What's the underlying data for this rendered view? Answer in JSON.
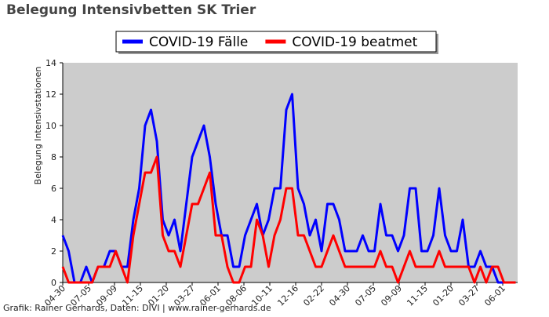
{
  "chart_data": {
    "type": "line",
    "title": "Belegung Intensivbetten SK Trier",
    "ylabel": "Belegung Intensivstationen",
    "footer": "Grafik: Rainer Gerhards, Daten: DIVI | www.rainer-gerhards.de",
    "legend": "upper center",
    "background": "#cccccc",
    "x": [
      0,
      15,
      30,
      45,
      60,
      75,
      90,
      105,
      120,
      135,
      150,
      165,
      180,
      195,
      210,
      225,
      240,
      255,
      270,
      285,
      300,
      315,
      330,
      345,
      360,
      375,
      390,
      405,
      420,
      435,
      450,
      465,
      480,
      495,
      510,
      525,
      540,
      555,
      570,
      585,
      600,
      615,
      630,
      645,
      660,
      675,
      690,
      705,
      720,
      735,
      750,
      765,
      780,
      795,
      810,
      825,
      840,
      855,
      870,
      885,
      900,
      915,
      930,
      945,
      960,
      975,
      990,
      1005,
      1020,
      1035,
      1050,
      1065,
      1080,
      1095,
      1110,
      1125,
      1140,
      1155
    ],
    "xlim": [
      0,
      1160
    ],
    "xticks": [
      {
        "value": 0,
        "label": "04-30"
      },
      {
        "value": 66,
        "label": "07-05"
      },
      {
        "value": 132,
        "label": "09-09"
      },
      {
        "value": 198,
        "label": "11-15"
      },
      {
        "value": 264,
        "label": "01-20"
      },
      {
        "value": 330,
        "label": "03-27"
      },
      {
        "value": 396,
        "label": "06-01"
      },
      {
        "value": 462,
        "label": "08-06"
      },
      {
        "value": 528,
        "label": "10-11"
      },
      {
        "value": 594,
        "label": "12-16"
      },
      {
        "value": 660,
        "label": "02-22"
      },
      {
        "value": 726,
        "label": "04-30"
      },
      {
        "value": 792,
        "label": "07-05"
      },
      {
        "value": 858,
        "label": "09-09"
      },
      {
        "value": 924,
        "label": "11-15"
      },
      {
        "value": 990,
        "label": "01-20"
      },
      {
        "value": 1056,
        "label": "03-27"
      },
      {
        "value": 1122,
        "label": "06-01"
      }
    ],
    "ylim": [
      0,
      14
    ],
    "yticks": [
      0,
      2,
      4,
      6,
      8,
      10,
      12,
      14
    ],
    "series": [
      {
        "name": "COVID-19 Fälle",
        "color": "#0000ff",
        "values": [
          3,
          2,
          0,
          0,
          1,
          0,
          1,
          1,
          2,
          2,
          1,
          1,
          4,
          6,
          10,
          11,
          9,
          4,
          3,
          4,
          2,
          5,
          8,
          9,
          10,
          8,
          5,
          3,
          3,
          1,
          1,
          3,
          4,
          5,
          3,
          4,
          6,
          6,
          11,
          12,
          6,
          5,
          3,
          4,
          2,
          5,
          5,
          4,
          2,
          2,
          2,
          3,
          2,
          2,
          5,
          3,
          3,
          2,
          3,
          6,
          6,
          2,
          2,
          3,
          6,
          3,
          2,
          2,
          4,
          1,
          1,
          2,
          1,
          1,
          0,
          0,
          0,
          0
        ]
      },
      {
        "name": "COVID-19 beatmet",
        "color": "#ff0000",
        "values": [
          1,
          0,
          0,
          0,
          0,
          0,
          1,
          1,
          1,
          2,
          1,
          0,
          3,
          5,
          7,
          7,
          8,
          3,
          2,
          2,
          1,
          3,
          5,
          5,
          6,
          7,
          3,
          3,
          1,
          0,
          0,
          1,
          1,
          4,
          3,
          1,
          3,
          4,
          6,
          6,
          3,
          3,
          2,
          1,
          1,
          2,
          3,
          2,
          1,
          1,
          1,
          1,
          1,
          1,
          2,
          1,
          1,
          0,
          1,
          2,
          1,
          1,
          1,
          1,
          2,
          1,
          1,
          1,
          1,
          1,
          0,
          1,
          0,
          1,
          1,
          0,
          0,
          0
        ]
      }
    ]
  }
}
